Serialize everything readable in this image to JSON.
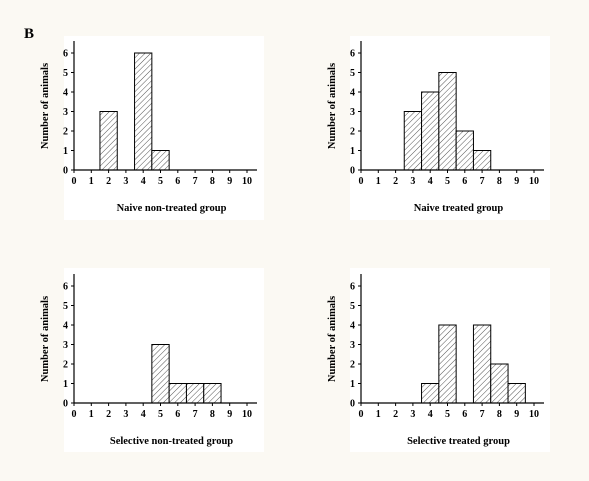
{
  "figure_label": "B",
  "chart_data": [
    {
      "type": "bar",
      "xlabel": "Naive non-treated group",
      "ylabel": "Number of animals",
      "xticks": [
        "0",
        "1",
        "2",
        "3",
        "4",
        "5",
        "6",
        "7",
        "8",
        "9",
        "10"
      ],
      "yticks": [
        "0",
        "1",
        "2",
        "3",
        "4",
        "5",
        "6"
      ],
      "xlim": [
        0,
        10.5
      ],
      "ylim": [
        0,
        6.6
      ],
      "bar_width": 1,
      "x": [
        2,
        4,
        5
      ],
      "values": [
        3,
        6,
        1
      ],
      "fill_pattern": "diagonal-hatch",
      "grid": false
    },
    {
      "type": "bar",
      "xlabel": "Naive treated group",
      "ylabel": "Number of animals",
      "xticks": [
        "0",
        "1",
        "2",
        "3",
        "4",
        "5",
        "6",
        "7",
        "8",
        "9",
        "10"
      ],
      "yticks": [
        "0",
        "1",
        "2",
        "3",
        "4",
        "5",
        "6"
      ],
      "xlim": [
        0,
        10.5
      ],
      "ylim": [
        0,
        6.6
      ],
      "bar_width": 1,
      "x": [
        3,
        4,
        5,
        6,
        7
      ],
      "values": [
        3,
        4,
        5,
        2,
        1
      ],
      "fill_pattern": "diagonal-hatch",
      "grid": false
    },
    {
      "type": "bar",
      "xlabel": "Selective non-treated group",
      "ylabel": "Number of animals",
      "xticks": [
        "0",
        "1",
        "2",
        "3",
        "4",
        "5",
        "6",
        "7",
        "8",
        "9",
        "10"
      ],
      "yticks": [
        "0",
        "1",
        "2",
        "3",
        "4",
        "5",
        "6"
      ],
      "xlim": [
        0,
        10.5
      ],
      "ylim": [
        0,
        6.6
      ],
      "bar_width": 1,
      "x": [
        5,
        6,
        7,
        8
      ],
      "values": [
        3,
        1,
        1,
        1
      ],
      "fill_pattern": "diagonal-hatch",
      "grid": false
    },
    {
      "type": "bar",
      "xlabel": "Selective treated group",
      "ylabel": "Number of animals",
      "xticks": [
        "0",
        "1",
        "2",
        "3",
        "4",
        "5",
        "6",
        "7",
        "8",
        "9",
        "10"
      ],
      "yticks": [
        "0",
        "1",
        "2",
        "3",
        "4",
        "5",
        "6"
      ],
      "xlim": [
        0,
        10.5
      ],
      "ylim": [
        0,
        6.6
      ],
      "bar_width": 1,
      "x": [
        4,
        5,
        7,
        8,
        9
      ],
      "values": [
        1,
        4,
        4,
        2,
        1
      ],
      "fill_pattern": "diagonal-hatch",
      "grid": false
    }
  ]
}
